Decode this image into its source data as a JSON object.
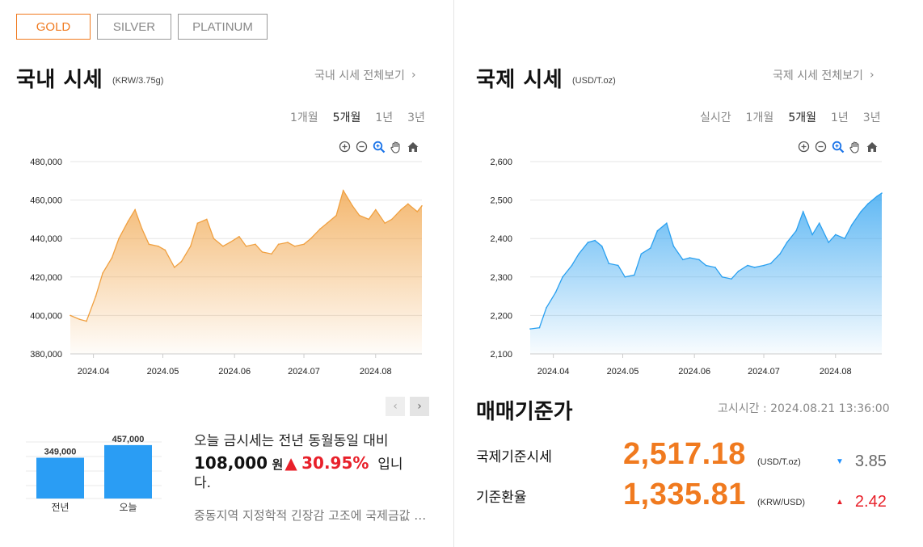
{
  "metal_tabs": [
    {
      "label": "GOLD",
      "active": true
    },
    {
      "label": "SILVER",
      "active": false
    },
    {
      "label": "PLATINUM",
      "active": false
    }
  ],
  "domestic": {
    "title": "국내 시세",
    "unit": "(KRW/3.75g)",
    "more_label": "국내 시세 전체보기",
    "periods": [
      "1개월",
      "5개월",
      "1년",
      "3년"
    ],
    "selected_period": "5개월"
  },
  "international": {
    "title": "국제 시세",
    "unit": "(USD/T.oz)",
    "more_label": "국제 시세 전체보기",
    "periods": [
      "실시간",
      "1개월",
      "5개월",
      "1년",
      "3년"
    ],
    "selected_period": "5개월"
  },
  "chart_tools": [
    "zoom-in-icon",
    "zoom-out-icon",
    "zoom-select-icon",
    "pan-hand-icon",
    "home-icon"
  ],
  "colors": {
    "accent": "#f07a1f",
    "up": "#e8202a",
    "down": "#1e90ff",
    "domestic_line": "#f0a040",
    "intl_line": "#2aa0f0",
    "bar": "#2a9df4"
  },
  "chart_data": [
    {
      "type": "area",
      "title": "",
      "ylim": [
        380000,
        480000
      ],
      "y_ticks": [
        "480,000",
        "460,000",
        "440,000",
        "420,000",
        "400,000",
        "380,000"
      ],
      "x_ticks": [
        "2024.04",
        "2024.05",
        "2024.06",
        "2024.07",
        "2024.08"
      ],
      "x": [
        "2024.03.22",
        "2024.03.26",
        "2024.03.29",
        "2024.04.02",
        "2024.04.05",
        "2024.04.09",
        "2024.04.12",
        "2024.04.16",
        "2024.04.19",
        "2024.04.22",
        "2024.04.25",
        "2024.04.29",
        "2024.05.02",
        "2024.05.06",
        "2024.05.09",
        "2024.05.13",
        "2024.05.16",
        "2024.05.20",
        "2024.05.23",
        "2024.05.27",
        "2024.05.30",
        "2024.06.03",
        "2024.06.06",
        "2024.06.10",
        "2024.06.13",
        "2024.06.17",
        "2024.06.20",
        "2024.06.24",
        "2024.06.27",
        "2024.07.01",
        "2024.07.04",
        "2024.07.08",
        "2024.07.11",
        "2024.07.15",
        "2024.07.18",
        "2024.07.22",
        "2024.07.25",
        "2024.07.29",
        "2024.08.01",
        "2024.08.05",
        "2024.08.08",
        "2024.08.12",
        "2024.08.15",
        "2024.08.19",
        "2024.08.21"
      ],
      "values": [
        400000,
        398000,
        397000,
        410000,
        422000,
        430000,
        440000,
        449000,
        455000,
        445000,
        437000,
        436000,
        434000,
        425000,
        428000,
        436000,
        448000,
        450000,
        440000,
        436000,
        438000,
        441000,
        436000,
        437000,
        433000,
        432000,
        437000,
        438000,
        436000,
        437000,
        440000,
        445000,
        448000,
        452000,
        465000,
        457000,
        452000,
        450000,
        455000,
        448000,
        450000,
        455000,
        458000,
        454000,
        457000
      ]
    },
    {
      "type": "area",
      "title": "",
      "ylim": [
        2100,
        2600
      ],
      "y_ticks": [
        "2,600",
        "2,500",
        "2,400",
        "2,300",
        "2,200",
        "2,100"
      ],
      "x_ticks": [
        "2024.04",
        "2024.05",
        "2024.06",
        "2024.07",
        "2024.08"
      ],
      "x": [
        "2024.03.22",
        "2024.03.26",
        "2024.03.29",
        "2024.04.02",
        "2024.04.05",
        "2024.04.09",
        "2024.04.12",
        "2024.04.16",
        "2024.04.19",
        "2024.04.22",
        "2024.04.25",
        "2024.04.29",
        "2024.05.02",
        "2024.05.06",
        "2024.05.09",
        "2024.05.13",
        "2024.05.16",
        "2024.05.20",
        "2024.05.23",
        "2024.05.27",
        "2024.05.30",
        "2024.06.03",
        "2024.06.06",
        "2024.06.10",
        "2024.06.13",
        "2024.06.17",
        "2024.06.20",
        "2024.06.24",
        "2024.06.27",
        "2024.07.01",
        "2024.07.04",
        "2024.07.08",
        "2024.07.11",
        "2024.07.15",
        "2024.07.18",
        "2024.07.22",
        "2024.07.25",
        "2024.07.29",
        "2024.08.01",
        "2024.08.05",
        "2024.08.08",
        "2024.08.12",
        "2024.08.15",
        "2024.08.19",
        "2024.08.21"
      ],
      "values": [
        2165,
        2168,
        2220,
        2260,
        2300,
        2330,
        2360,
        2390,
        2395,
        2380,
        2335,
        2330,
        2300,
        2305,
        2360,
        2375,
        2420,
        2440,
        2380,
        2345,
        2350,
        2345,
        2330,
        2325,
        2300,
        2295,
        2315,
        2330,
        2325,
        2330,
        2335,
        2360,
        2390,
        2420,
        2470,
        2410,
        2440,
        2390,
        2410,
        2400,
        2435,
        2470,
        2490,
        2510,
        2518
      ]
    },
    {
      "type": "bar",
      "title": "",
      "categories": [
        "전년",
        "오늘"
      ],
      "values": [
        349000,
        457000
      ],
      "labels": [
        "349,000",
        "457,000"
      ]
    }
  ],
  "summary": {
    "line1": "오늘 금시세는 전년 동월동일 대비",
    "amount": "108,000",
    "won": "원",
    "up_arrow": "▲",
    "percent": "30.95%",
    "tail": "입니",
    "tail2": "다.",
    "news": "중동지역 지정학적 긴장감 고조에 국제금값 상승세"
  },
  "standard": {
    "title": "매매기준가",
    "notice_time": "고시시간 : 2024.08.21 13:36:00",
    "rows": [
      {
        "label": "국제기준시세",
        "value": "2,517.18",
        "unit": "(USD/T.oz)",
        "direction": "down",
        "arrow": "▼",
        "change": "3.85"
      },
      {
        "label": "기준환율",
        "value": "1,335.81",
        "unit": "(KRW/USD)",
        "direction": "up",
        "arrow": "▲",
        "change": "2.42"
      }
    ]
  },
  "pager": {
    "prev": "‹",
    "next": "›"
  }
}
